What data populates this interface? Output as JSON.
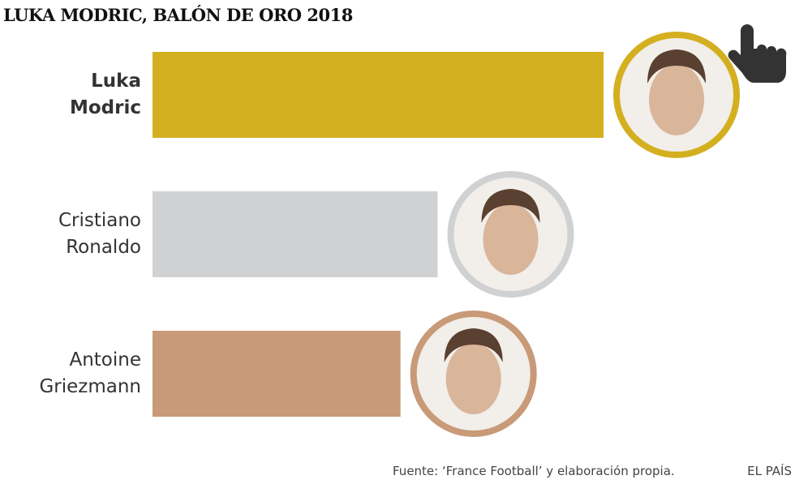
{
  "chart_data": {
    "type": "bar",
    "orientation": "horizontal",
    "title": "LUKA MODRIC, BALÓN DE ORO 2018",
    "categories": [
      "Luka Modric",
      "Cristiano Ronaldo",
      "Antoine Griezmann"
    ],
    "values": [
      753,
      476,
      414
    ],
    "colors": [
      "#d4af20",
      "#d0d1d3",
      "#c89a78"
    ],
    "source": "Fuente: ‘France Football’ y elaboración propia.",
    "credit": "EL PAÍS"
  }
}
